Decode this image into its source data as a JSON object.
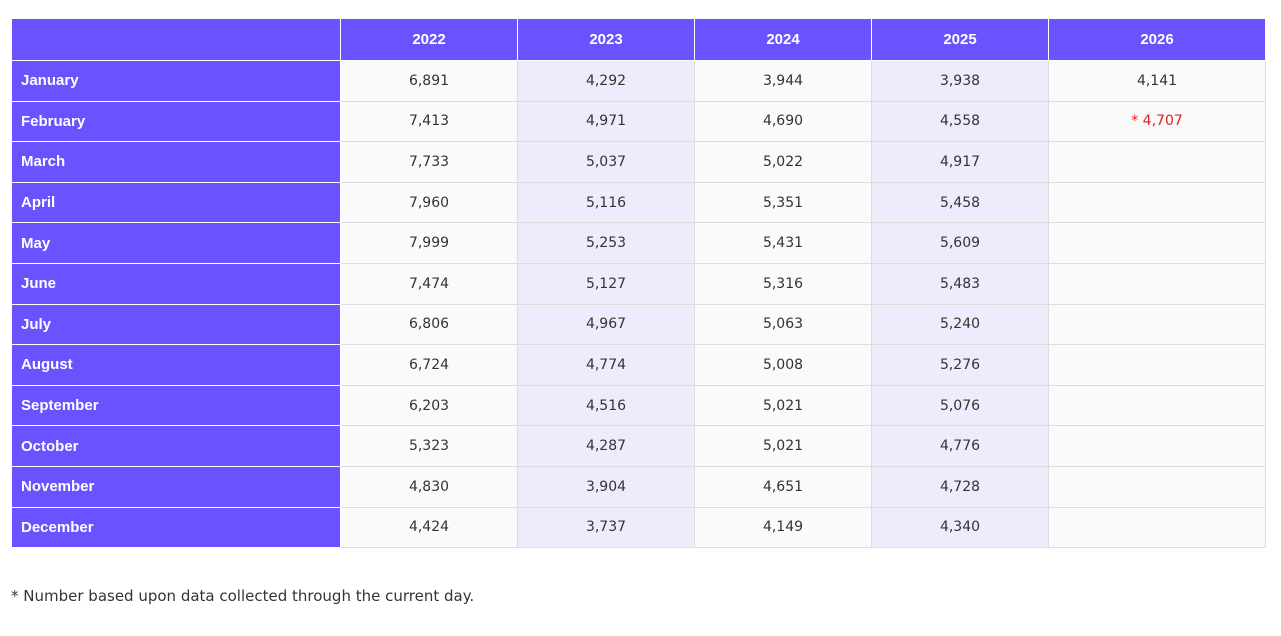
{
  "table": {
    "header": [
      null,
      "2022",
      "2023",
      "2024",
      "2025",
      "2026"
    ],
    "rows": [
      [
        "January",
        "6,891",
        "4,292",
        "3,944",
        "3,938",
        "4,141"
      ],
      [
        "February",
        "7,413",
        "4,971",
        "4,690",
        "4,558",
        "* 4,707"
      ],
      [
        "March",
        "7,733",
        "5,037",
        "5,022",
        "4,917",
        null
      ],
      [
        "April",
        "7,960",
        "5,116",
        "5,351",
        "5,458",
        null
      ],
      [
        "May",
        "7,999",
        "5,253",
        "5,431",
        "5,609",
        null
      ],
      [
        "June",
        "7,474",
        "5,127",
        "5,316",
        "5,483",
        null
      ],
      [
        "July",
        "6,806",
        "4,967",
        "5,063",
        "5,240",
        null
      ],
      [
        "August",
        "6,724",
        "4,774",
        "5,008",
        "5,276",
        null
      ],
      [
        "September",
        "6,203",
        "4,516",
        "5,021",
        "5,076",
        null
      ],
      [
        "October",
        "5,323",
        "4,287",
        "5,021",
        "4,776",
        null
      ],
      [
        "November",
        "4,830",
        "3,904",
        "4,651",
        "4,728",
        null
      ],
      [
        "December",
        "4,424",
        "3,737",
        "4,149",
        "4,340",
        null
      ]
    ]
  },
  "footnote": "* Number based upon data collected through the current day."
}
